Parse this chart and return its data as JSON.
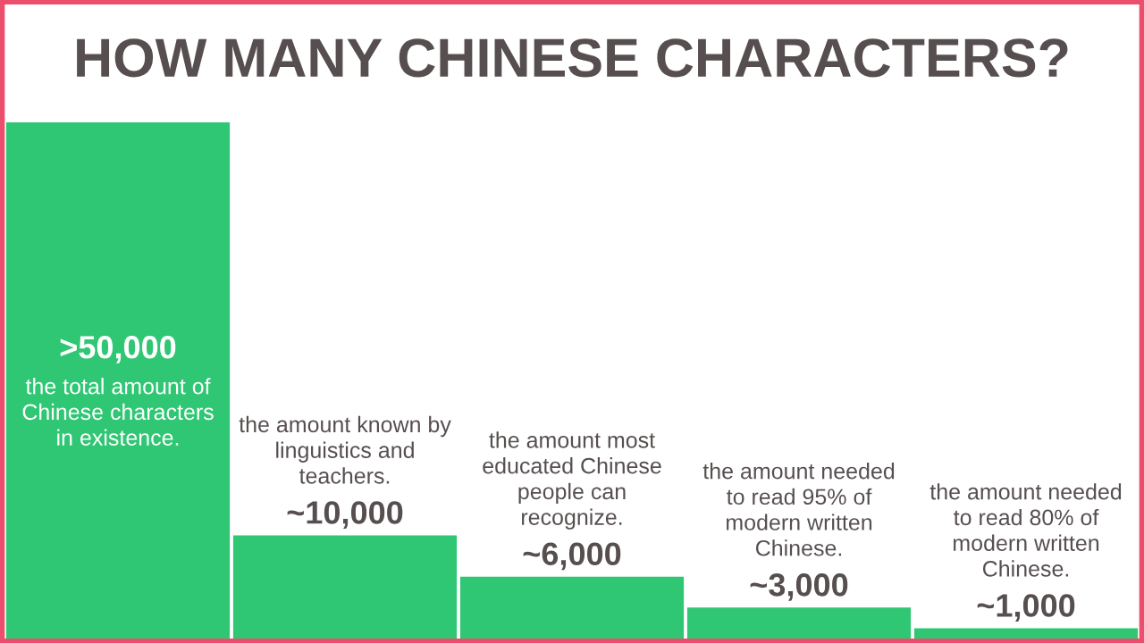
{
  "chart_data": {
    "type": "bar",
    "title": "HOW MANY CHINESE CHARACTERS?",
    "categories": [
      "the total amount of Chinese characters in existence.",
      "the amount known by linguistics and teachers.",
      "the amount most educated Chinese people can recognize.",
      "the amount needed to read 95% of modern written Chinese.",
      "the amount needed to read 80% of modern written Chinese."
    ],
    "values": [
      50000,
      10000,
      6000,
      3000,
      1000
    ],
    "value_labels": [
      ">50,000",
      "~10,000",
      "~6,000",
      "~3,000",
      "~1,000"
    ],
    "color": "#30c774"
  }
}
